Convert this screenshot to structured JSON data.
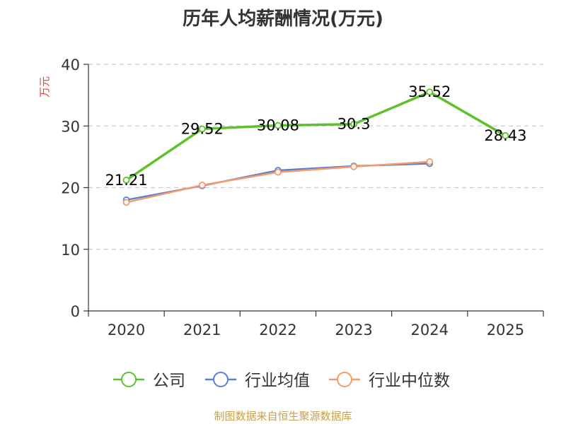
{
  "chart_data": {
    "type": "line",
    "title": "历年人均薪酬情况(万元)",
    "ylabel": "万元",
    "xlabel": "",
    "categories": [
      "2020",
      "2021",
      "2022",
      "2023",
      "2024",
      "2025"
    ],
    "ylim": [
      0,
      40
    ],
    "yticks": [
      0,
      10,
      20,
      30,
      40
    ],
    "grid": true,
    "legend_position": "bottom-center",
    "series": [
      {
        "name": "公司",
        "color": "#5dc22a",
        "values": [
          21.21,
          29.52,
          30.08,
          30.3,
          35.52,
          28.43
        ],
        "labels": [
          "21.21",
          "29.52",
          "30.08",
          "30.3",
          "35.52",
          "28.43"
        ]
      },
      {
        "name": "行业均值",
        "color": "#5b7fd4",
        "values": [
          18.0,
          20.3,
          22.8,
          23.5,
          23.9,
          null
        ]
      },
      {
        "name": "行业中位数",
        "color": "#f59a6a",
        "values": [
          17.6,
          20.4,
          22.5,
          23.4,
          24.2,
          null
        ]
      }
    ]
  },
  "source_note": "制图数据来自恒生聚源数据库"
}
